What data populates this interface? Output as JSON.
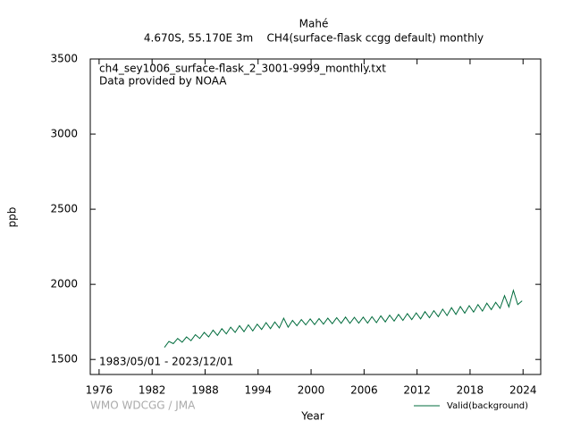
{
  "chart_data": {
    "type": "line",
    "title": "Mahé",
    "subtitle": "4.670S, 55.170E 3m    CH4(surface-flask ccgg default) monthly",
    "annotations": [
      "ch4_sey1006_surface-flask_2_3001-9999_monthly.txt",
      "Data provided by NOAA",
      "1983/05/01 - 2023/12/01"
    ],
    "credit": "WMO WDCGG / JMA",
    "x_label": "Year",
    "y_label": "ppb",
    "xlim": [
      1975,
      2026
    ],
    "xticks": [
      1976,
      1982,
      1988,
      1994,
      2000,
      2006,
      2012,
      2018,
      2024
    ],
    "ylim": [
      1400,
      3500
    ],
    "yticks": [
      1500,
      2000,
      2500,
      3000,
      3500
    ],
    "legend": "lower right",
    "series": [
      {
        "name": "Valid(background)",
        "color": "#006b3c",
        "x": [
          1983.4,
          1983.9,
          1984.4,
          1984.9,
          1985.4,
          1985.9,
          1986.4,
          1986.9,
          1987.4,
          1987.9,
          1988.4,
          1988.9,
          1989.4,
          1989.9,
          1990.4,
          1990.9,
          1991.4,
          1991.9,
          1992.4,
          1992.9,
          1993.4,
          1993.9,
          1994.4,
          1994.9,
          1995.4,
          1995.9,
          1996.4,
          1996.9,
          1997.4,
          1997.9,
          1998.4,
          1998.9,
          1999.4,
          1999.9,
          2000.4,
          2000.9,
          2001.4,
          2001.9,
          2002.4,
          2002.9,
          2003.4,
          2003.9,
          2004.4,
          2004.9,
          2005.4,
          2005.9,
          2006.4,
          2006.9,
          2007.4,
          2007.9,
          2008.4,
          2008.9,
          2009.4,
          2009.9,
          2010.4,
          2010.9,
          2011.4,
          2011.9,
          2012.4,
          2012.9,
          2013.4,
          2013.9,
          2014.4,
          2014.9,
          2015.4,
          2015.9,
          2016.4,
          2016.9,
          2017.4,
          2017.9,
          2018.4,
          2018.9,
          2019.4,
          2019.9,
          2020.4,
          2020.9,
          2021.4,
          2021.9,
          2022.4,
          2022.9,
          2023.4,
          2023.9
        ],
        "values": [
          1580,
          1620,
          1605,
          1640,
          1615,
          1650,
          1625,
          1665,
          1640,
          1680,
          1650,
          1695,
          1660,
          1705,
          1670,
          1715,
          1680,
          1725,
          1685,
          1730,
          1690,
          1735,
          1700,
          1745,
          1705,
          1750,
          1710,
          1775,
          1715,
          1760,
          1725,
          1765,
          1730,
          1770,
          1732,
          1772,
          1735,
          1775,
          1738,
          1778,
          1740,
          1782,
          1740,
          1780,
          1742,
          1782,
          1742,
          1785,
          1745,
          1790,
          1750,
          1795,
          1755,
          1800,
          1760,
          1805,
          1765,
          1810,
          1770,
          1818,
          1778,
          1825,
          1785,
          1835,
          1792,
          1845,
          1800,
          1852,
          1808,
          1858,
          1815,
          1865,
          1822,
          1875,
          1832,
          1880,
          1840,
          1925,
          1850,
          1960,
          1865,
          1890
        ]
      }
    ]
  }
}
